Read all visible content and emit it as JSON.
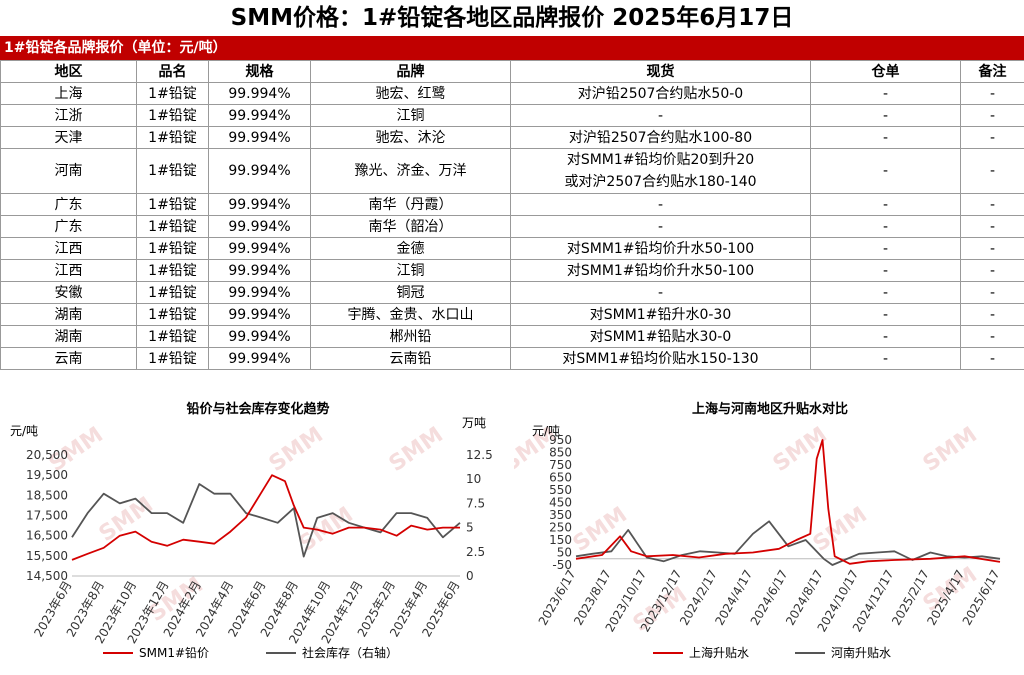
{
  "header": {
    "title": "SMM价格：1#铅锭各地区品牌报价 2025年6月17日"
  },
  "banner": {
    "text": "1#铅锭各品牌报价（单位：元/吨）"
  },
  "table": {
    "columns": [
      "地区",
      "品名",
      "规格",
      "品牌",
      "现货",
      "仓单",
      "备注"
    ],
    "rows": [
      [
        "上海",
        "1#铅锭",
        "99.994%",
        "驰宏、红鹭",
        "对沪铅2507合约贴水50-0",
        "-",
        "-"
      ],
      [
        "江浙",
        "1#铅锭",
        "99.994%",
        "江铜",
        "-",
        "-",
        "-"
      ],
      [
        "天津",
        "1#铅锭",
        "99.994%",
        "驰宏、沐沦",
        "对沪铅2507合约贴水100-80",
        "-",
        "-"
      ],
      [
        "河南",
        "1#铅锭",
        "99.994%",
        "豫光、济金、万洋",
        "对SMM1#铅均价贴20到升20\n或对沪2507合约贴水180-140",
        "-",
        "-"
      ],
      [
        "广东",
        "1#铅锭",
        "99.994%",
        "南华（丹霞）",
        "-",
        "-",
        "-"
      ],
      [
        "广东",
        "1#铅锭",
        "99.994%",
        "南华（韶冶）",
        "-",
        "-",
        "-"
      ],
      [
        "江西",
        "1#铅锭",
        "99.994%",
        "金德",
        "对SMM1#铅均价升水50-100",
        "-",
        "-"
      ],
      [
        "江西",
        "1#铅锭",
        "99.994%",
        "江铜",
        "对SMM1#铅均价升水50-100",
        "-",
        "-"
      ],
      [
        "安徽",
        "1#铅锭",
        "99.994%",
        "铜冠",
        "-",
        "-",
        "-"
      ],
      [
        "湖南",
        "1#铅锭",
        "99.994%",
        "宇腾、金贵、水口山",
        "对SMM1#铅升水0-30",
        "-",
        "-"
      ],
      [
        "湖南",
        "1#铅锭",
        "99.994%",
        "郴州铅",
        "对SMM1#铅贴水30-0",
        "-",
        "-"
      ],
      [
        "云南",
        "1#铅锭",
        "99.994%",
        "云南铅",
        "对SMM1#铅均价贴水150-130",
        "-",
        "-"
      ]
    ]
  },
  "watermark": "SMM",
  "chart_data": [
    {
      "type": "line",
      "title": "铅价与社会库存变化趋势",
      "ylabel": "元/吨",
      "y2label": "万吨",
      "ylim": [
        14500,
        20500
      ],
      "yticks": [
        "20,500",
        "19,500",
        "18,500",
        "17,500",
        "16,500",
        "15,500",
        "14,500"
      ],
      "y2lim": [
        0,
        12.5
      ],
      "y2ticks": [
        "12.5",
        "10",
        "7.5",
        "5",
        "2.5",
        "0"
      ],
      "xlim": [
        "2023-06-01",
        "2025-06-17"
      ],
      "xticks": [
        "2023年6月",
        "2023年8月",
        "2023年10月",
        "2023年12月",
        "2024年2月",
        "2024年4月",
        "2024年6月",
        "2024年8月",
        "2024年10月",
        "2024年12月",
        "2025年2月",
        "2025年4月",
        "2025年6月"
      ],
      "grid": false,
      "legend_position": "bottom",
      "series": [
        {
          "name": "SMM1#铅价",
          "axis": "left",
          "color": "#d40000",
          "x": [
            "2023-06-01",
            "2023-07-01",
            "2023-08-01",
            "2023-09-01",
            "2023-10-01",
            "2023-11-01",
            "2023-12-01",
            "2024-01-01",
            "2024-02-01",
            "2024-03-01",
            "2024-04-01",
            "2024-05-01",
            "2024-06-01",
            "2024-06-20",
            "2024-07-15",
            "2024-08-01",
            "2024-08-20",
            "2024-09-15",
            "2024-10-15",
            "2024-11-15",
            "2024-12-15",
            "2025-01-15",
            "2025-02-15",
            "2025-03-15",
            "2025-04-15",
            "2025-05-15",
            "2025-06-17"
          ],
          "y": [
            15300,
            15600,
            15900,
            16500,
            16700,
            16200,
            16000,
            16300,
            16200,
            16100,
            16700,
            17400,
            18700,
            19500,
            19200,
            18000,
            16900,
            16800,
            16600,
            16900,
            16900,
            16800,
            16500,
            17000,
            16800,
            16900,
            16900
          ]
        },
        {
          "name": "社会库存（右轴）",
          "axis": "right",
          "color": "#555555",
          "x": [
            "2023-06-01",
            "2023-07-01",
            "2023-08-01",
            "2023-09-01",
            "2023-10-01",
            "2023-11-01",
            "2023-12-01",
            "2024-01-01",
            "2024-02-01",
            "2024-03-01",
            "2024-04-01",
            "2024-05-01",
            "2024-06-01",
            "2024-07-01",
            "2024-08-01",
            "2024-08-20",
            "2024-09-15",
            "2024-10-15",
            "2024-11-15",
            "2024-12-15",
            "2025-01-15",
            "2025-02-15",
            "2025-03-15",
            "2025-04-15",
            "2025-05-15",
            "2025-06-17"
          ],
          "y": [
            4.0,
            6.5,
            8.5,
            7.5,
            8.0,
            6.5,
            6.5,
            5.5,
            9.5,
            8.5,
            8.5,
            6.5,
            6.0,
            5.5,
            7.0,
            2.0,
            6.0,
            6.5,
            5.5,
            5.0,
            4.5,
            6.5,
            6.5,
            6.0,
            4.0,
            5.5
          ]
        }
      ]
    },
    {
      "type": "line",
      "title": "上海与河南地区升贴水对比",
      "ylabel": "元/吨",
      "ylim": [
        -50,
        950
      ],
      "yticks": [
        "950",
        "850",
        "750",
        "650",
        "550",
        "450",
        "350",
        "250",
        "150",
        "50",
        "-50"
      ],
      "xlim": [
        "2023-06-17",
        "2025-06-17"
      ],
      "xticks": [
        "2023/6/17",
        "2023/8/17",
        "2023/10/17",
        "2023/12/17",
        "2024/2/17",
        "2024/4/17",
        "2024/6/17",
        "2024/8/17",
        "2024/10/17",
        "2024/12/17",
        "2025/2/17",
        "2025/4/17",
        "2025/6/17"
      ],
      "grid": false,
      "legend_position": "bottom",
      "series": [
        {
          "name": "上海升贴水",
          "color": "#d40000",
          "x": [
            "2023-06-17",
            "2023-08-01",
            "2023-09-01",
            "2023-09-20",
            "2023-10-17",
            "2023-12-01",
            "2024-01-15",
            "2024-03-01",
            "2024-04-17",
            "2024-06-01",
            "2024-07-01",
            "2024-07-25",
            "2024-08-05",
            "2024-08-15",
            "2024-08-25",
            "2024-09-05",
            "2024-10-01",
            "2024-11-01",
            "2024-12-17",
            "2025-02-17",
            "2025-04-17",
            "2025-06-17"
          ],
          "y": [
            0,
            30,
            180,
            60,
            20,
            30,
            10,
            40,
            50,
            80,
            150,
            200,
            800,
            950,
            400,
            20,
            -40,
            -20,
            -10,
            0,
            20,
            -25
          ]
        },
        {
          "name": "河南升贴水",
          "color": "#555555",
          "x": [
            "2023-06-17",
            "2023-07-15",
            "2023-08-17",
            "2023-09-15",
            "2023-10-17",
            "2023-11-15",
            "2023-12-17",
            "2024-01-17",
            "2024-02-17",
            "2024-03-17",
            "2024-04-17",
            "2024-05-15",
            "2024-06-17",
            "2024-07-17",
            "2024-08-17",
            "2024-09-01",
            "2024-10-17",
            "2024-11-17",
            "2024-12-17",
            "2025-01-17",
            "2025-02-17",
            "2025-03-17",
            "2025-04-17",
            "2025-05-17",
            "2025-06-17"
          ],
          "y": [
            20,
            40,
            60,
            230,
            10,
            -20,
            30,
            60,
            50,
            40,
            200,
            300,
            100,
            150,
            0,
            -50,
            40,
            50,
            60,
            -10,
            50,
            20,
            10,
            20,
            0
          ]
        }
      ]
    }
  ]
}
